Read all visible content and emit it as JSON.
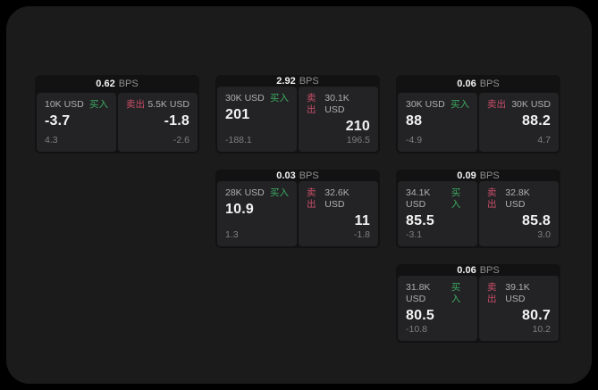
{
  "labels": {
    "bps": "BPS",
    "buy": "买入",
    "sell": "卖出"
  },
  "colors": {
    "page_bg": "#1b1b1c",
    "card_bg": "#121213",
    "panel_bg": "#232325",
    "buy_green": "#3cab62",
    "sell_red": "#c84e68",
    "text_primary": "#f2f2f2",
    "text_label": "#b0b0b0",
    "text_muted": "#7f7f7f",
    "text_muted2": "#8f8f8f"
  },
  "cards": [
    {
      "bps": "0.62",
      "buy": {
        "amount": "10K USD",
        "value": "-3.7",
        "sub": "4.3"
      },
      "sell": {
        "amount": "5.5K USD",
        "value": "-1.8",
        "sub": "-2.6"
      }
    },
    {
      "bps": "2.92",
      "buy": {
        "amount": "30K USD",
        "value": "201",
        "sub": "-188.1"
      },
      "sell": {
        "amount": "30.1K USD",
        "value": "210",
        "sub": "196.5"
      }
    },
    {
      "bps": "0.06",
      "buy": {
        "amount": "30K USD",
        "value": "88",
        "sub": "-4.9"
      },
      "sell": {
        "amount": "30K USD",
        "value": "88.2",
        "sub": "4.7"
      }
    },
    {
      "bps": "0.03",
      "buy": {
        "amount": "28K USD",
        "value": "10.9",
        "sub": "1.3"
      },
      "sell": {
        "amount": "32.6K USD",
        "value": "11",
        "sub": "-1.8"
      }
    },
    {
      "bps": "0.09",
      "buy": {
        "amount": "34.1K USD",
        "value": "85.5",
        "sub": "-3.1"
      },
      "sell": {
        "amount": "32.8K USD",
        "value": "85.8",
        "sub": "3.0"
      }
    },
    {
      "bps": "0.06",
      "buy": {
        "amount": "31.8K USD",
        "value": "80.5",
        "sub": "-10.8"
      },
      "sell": {
        "amount": "39.1K USD",
        "value": "80.7",
        "sub": "10.2"
      }
    }
  ]
}
